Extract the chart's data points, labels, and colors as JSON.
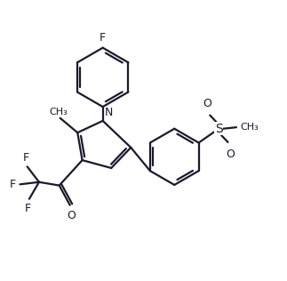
{
  "background_color": "#ffffff",
  "line_color": "#1a1a2e",
  "line_width": 1.6,
  "fig_width": 3.23,
  "fig_height": 3.16,
  "dpi": 100,
  "xlim": [
    0,
    10
  ],
  "ylim": [
    0,
    10
  ]
}
